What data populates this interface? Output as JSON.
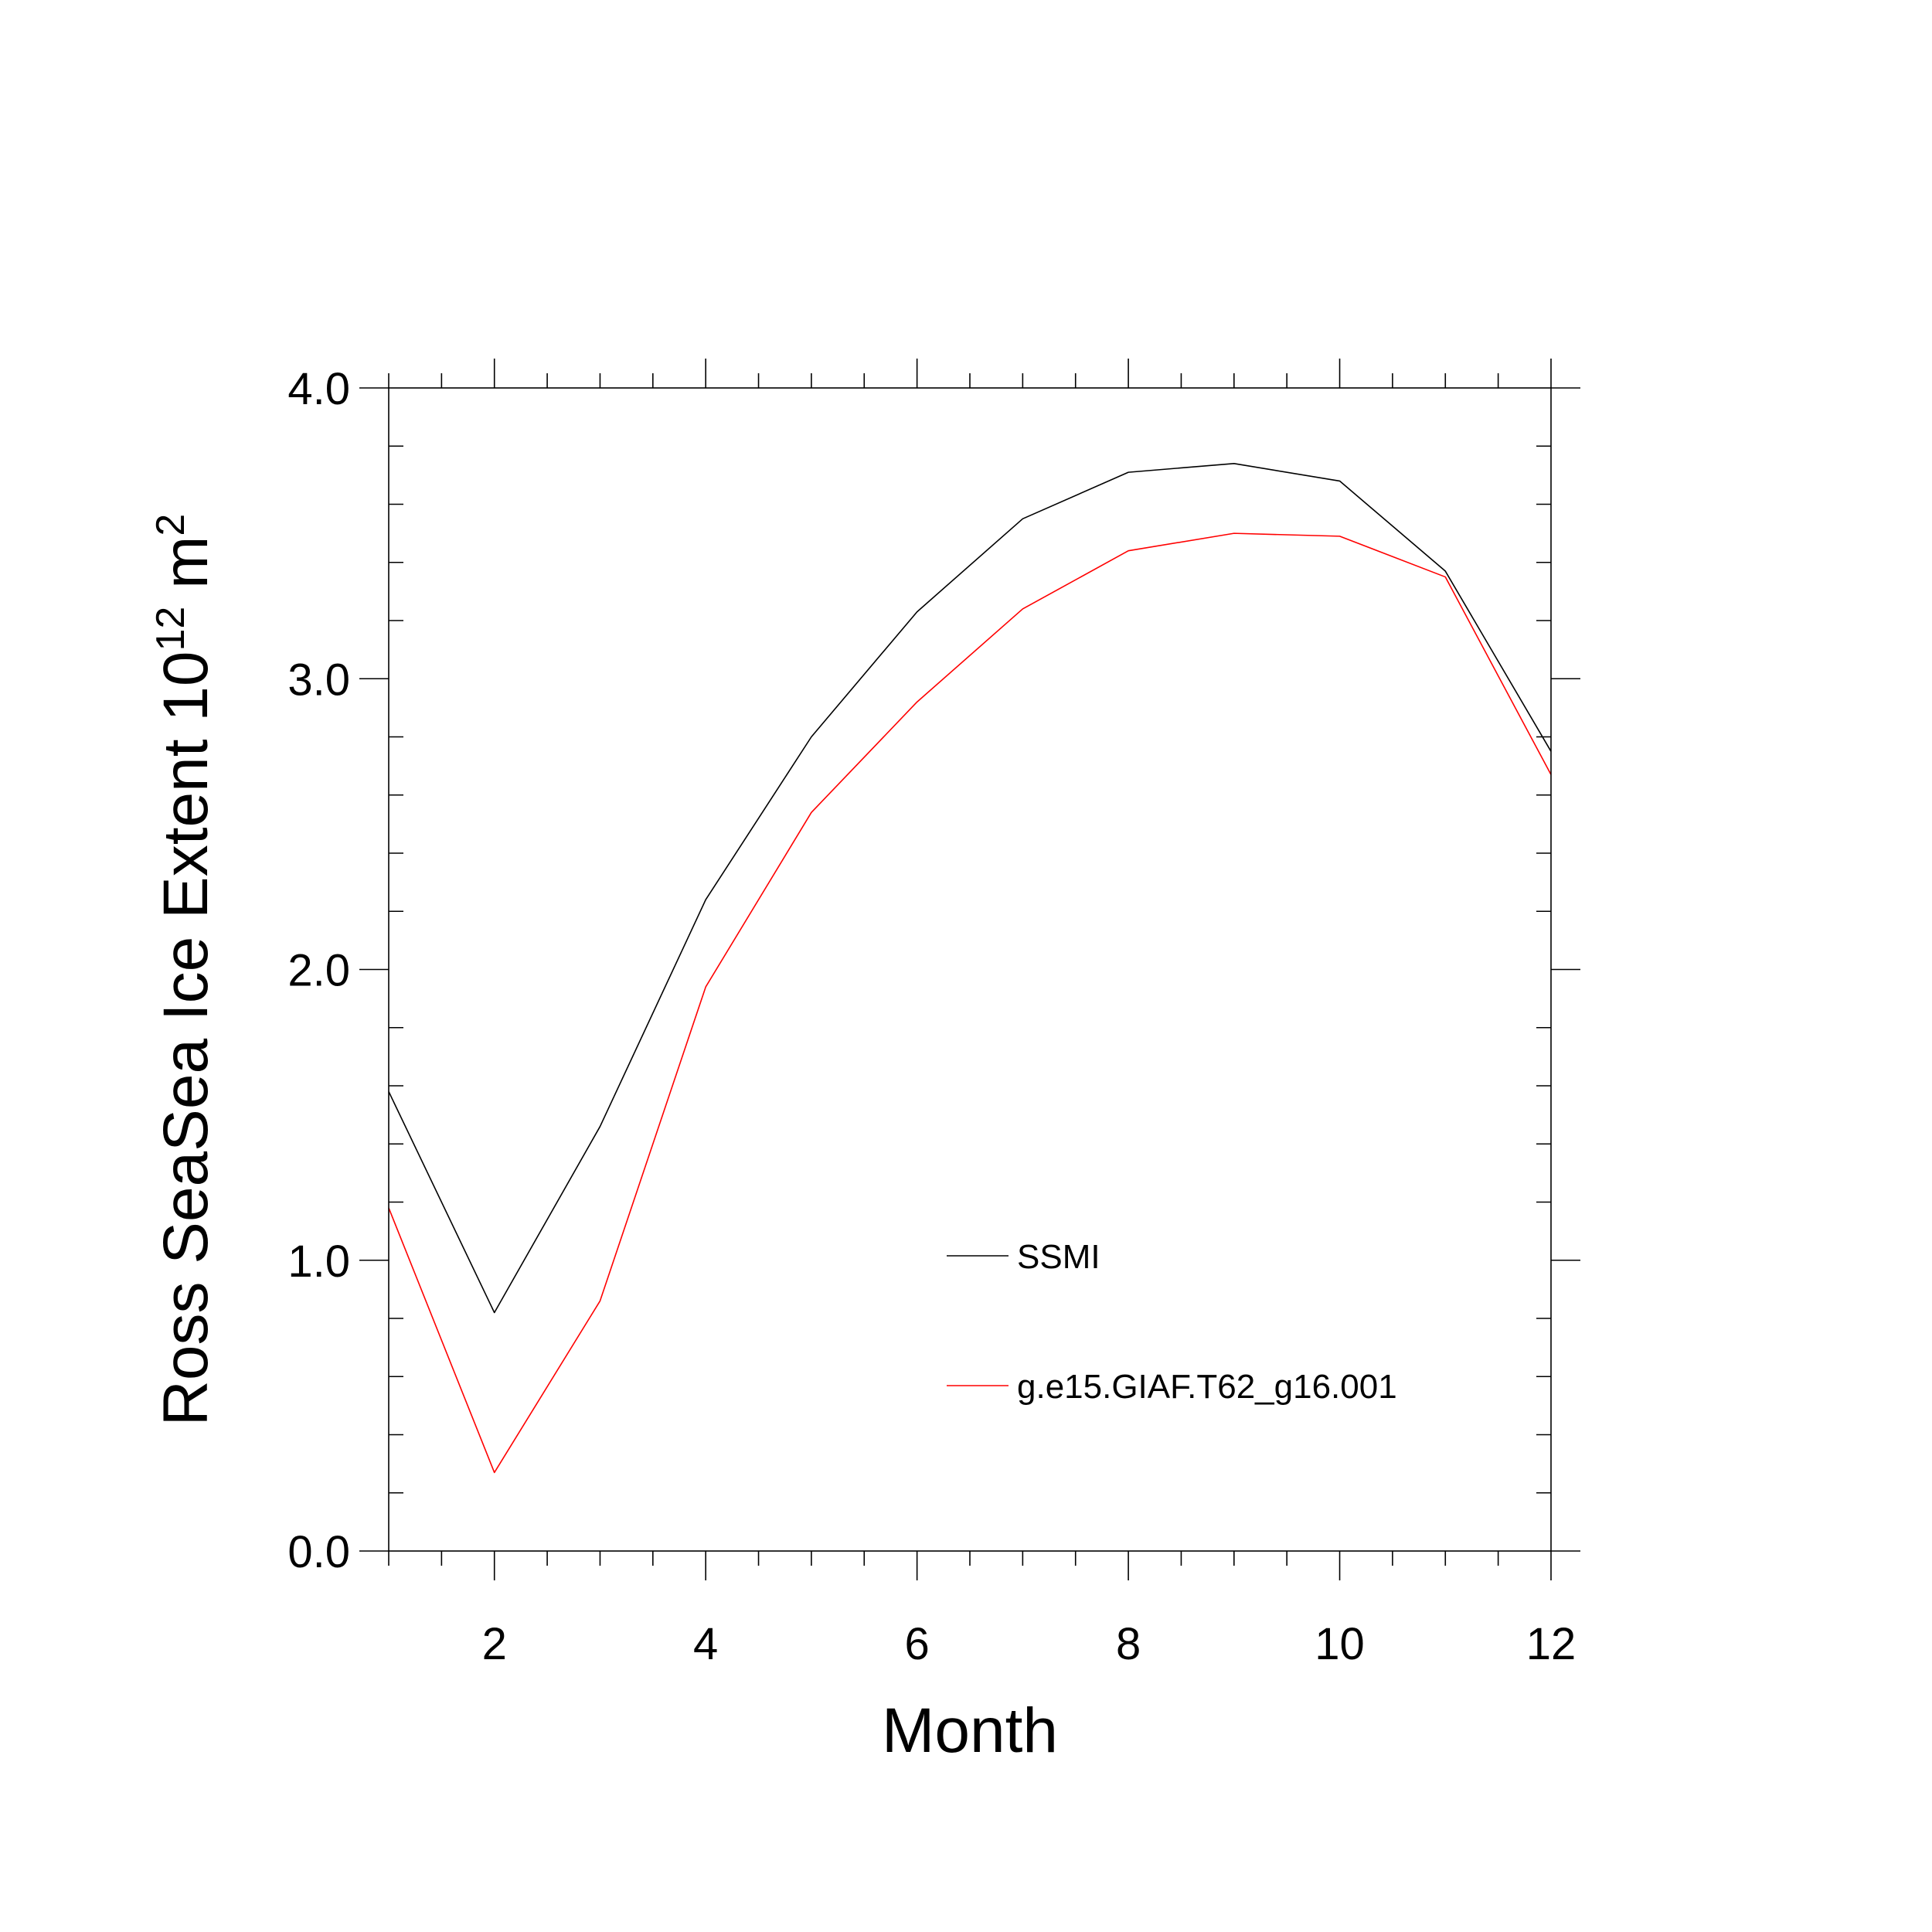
{
  "chart_data": {
    "type": "line",
    "title": "",
    "xlabel": "Month",
    "ylabel": "Ross SeaSea Ice Extent 10",
    "ylabel_sup": "12",
    "ylabel_unit": " m",
    "ylabel_unit_sup": "2",
    "xlim": [
      1,
      12
    ],
    "ylim": [
      0.0,
      4.0
    ],
    "x_ticks": [
      2,
      4,
      6,
      8,
      10,
      12
    ],
    "x_tick_labels": [
      "2",
      "4",
      "6",
      "8",
      "10",
      "12"
    ],
    "y_ticks": [
      0.0,
      1.0,
      2.0,
      3.0,
      4.0
    ],
    "y_tick_labels": [
      "0.0",
      "1.0",
      "2.0",
      "3.0",
      "4.0"
    ],
    "grid": false,
    "legend_position": "bottom-right inside",
    "x": [
      1,
      2,
      3,
      4,
      5,
      6,
      7,
      8,
      9,
      10,
      11,
      12
    ],
    "series": [
      {
        "name": "SSMI",
        "color": "#000000",
        "values": [
          1.58,
          0.82,
          1.46,
          2.24,
          2.8,
          3.23,
          3.55,
          3.71,
          3.74,
          3.68,
          3.37,
          2.75
        ]
      },
      {
        "name": "g.e15.GIAF.T62_g16.001",
        "color": "#ff0000",
        "values": [
          1.18,
          0.27,
          0.86,
          1.94,
          2.54,
          2.92,
          3.24,
          3.44,
          3.5,
          3.49,
          3.35,
          2.67
        ]
      }
    ]
  }
}
